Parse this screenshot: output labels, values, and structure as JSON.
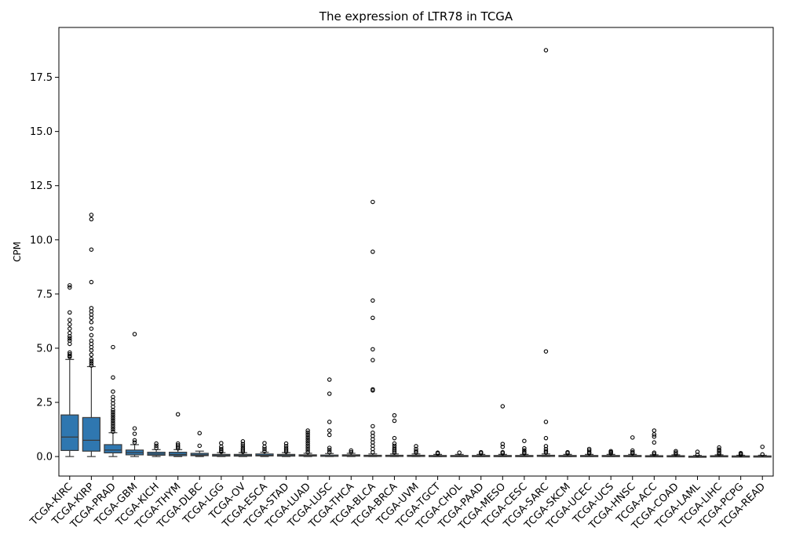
{
  "chart_data": {
    "type": "box",
    "title": "The expression of LTR78 in TCGA",
    "xlabel": "",
    "ylabel": "CPM",
    "ylim": [
      -0.9,
      19.8
    ],
    "yticks": [
      0.0,
      2.5,
      5.0,
      7.5,
      10.0,
      12.5,
      15.0,
      17.5
    ],
    "ytick_labels": [
      "0.0",
      "2.5",
      "5.0",
      "7.5",
      "10.0",
      "12.5",
      "15.0",
      "17.5"
    ],
    "grid": false,
    "legend": "none",
    "box_color": "#2f77b0",
    "categories": [
      "TCGA-KIRC",
      "TCGA-KIRP",
      "TCGA-PRAD",
      "TCGA-GBM",
      "TCGA-KICH",
      "TCGA-THYM",
      "TCGA-DLBC",
      "TCGA-LGG",
      "TCGA-OV",
      "TCGA-ESCA",
      "TCGA-STAD",
      "TCGA-LUAD",
      "TCGA-LUSC",
      "TCGA-THCA",
      "TCGA-BLCA",
      "TCGA-BRCA",
      "TCGA-UVM",
      "TCGA-TGCT",
      "TCGA-CHOL",
      "TCGA-PAAD",
      "TCGA-MESO",
      "TCGA-CESC",
      "TCGA-SARC",
      "TCGA-SKCM",
      "TCGA-UCEC",
      "TCGA-UCS",
      "TCGA-HNSC",
      "TCGA-ACC",
      "TCGA-COAD",
      "TCGA-LAML",
      "TCGA-LIHC",
      "TCGA-PCPG",
      "TCGA-READ"
    ],
    "boxes": [
      {
        "whisker_low": 0.0,
        "q1": 0.28,
        "median": 0.9,
        "q3": 1.92,
        "whisker_high": 4.48,
        "outliers": [
          4.6,
          4.65,
          4.72,
          4.8,
          5.2,
          5.35,
          5.45,
          5.55,
          5.7,
          5.9,
          6.1,
          6.3,
          6.65,
          7.8,
          7.9
        ]
      },
      {
        "whisker_low": 0.0,
        "q1": 0.25,
        "median": 0.75,
        "q3": 1.8,
        "whisker_high": 4.15,
        "outliers": [
          4.2,
          4.3,
          4.4,
          4.5,
          4.7,
          4.9,
          5.05,
          5.2,
          5.35,
          5.6,
          5.9,
          6.2,
          6.4,
          6.55,
          6.7,
          6.85,
          8.05,
          9.55,
          10.95,
          11.15
        ]
      },
      {
        "whisker_low": 0.0,
        "q1": 0.17,
        "median": 0.3,
        "q3": 0.55,
        "whisker_high": 1.1,
        "outliers": [
          1.15,
          1.25,
          1.35,
          1.45,
          1.55,
          1.65,
          1.75,
          1.85,
          1.95,
          2.05,
          2.15,
          2.3,
          2.45,
          2.6,
          2.75,
          3.0,
          3.65,
          5.05
        ]
      },
      {
        "whisker_low": 0.0,
        "q1": 0.08,
        "median": 0.18,
        "q3": 0.3,
        "whisker_high": 0.55,
        "outliers": [
          0.65,
          0.75,
          1.05,
          1.3,
          5.65
        ]
      },
      {
        "whisker_low": 0.0,
        "q1": 0.06,
        "median": 0.12,
        "q3": 0.2,
        "whisker_high": 0.32,
        "outliers": [
          0.4,
          0.5,
          0.6
        ]
      },
      {
        "whisker_low": 0.0,
        "q1": 0.04,
        "median": 0.1,
        "q3": 0.2,
        "whisker_high": 0.32,
        "outliers": [
          0.38,
          0.45,
          0.52,
          0.6,
          1.95
        ]
      },
      {
        "whisker_low": 0.0,
        "q1": 0.04,
        "median": 0.08,
        "q3": 0.15,
        "whisker_high": 0.25,
        "outliers": [
          0.5,
          1.08
        ]
      },
      {
        "whisker_low": 0.0,
        "q1": 0.02,
        "median": 0.05,
        "q3": 0.1,
        "whisker_high": 0.18,
        "outliers": [
          0.22,
          0.28,
          0.35,
          0.45,
          0.62
        ]
      },
      {
        "whisker_low": 0.0,
        "q1": 0.02,
        "median": 0.05,
        "q3": 0.1,
        "whisker_high": 0.18,
        "outliers": [
          0.22,
          0.3,
          0.38,
          0.48,
          0.58,
          0.7
        ]
      },
      {
        "whisker_low": 0.0,
        "q1": 0.03,
        "median": 0.06,
        "q3": 0.12,
        "whisker_high": 0.2,
        "outliers": [
          0.25,
          0.35,
          0.45,
          0.62
        ]
      },
      {
        "whisker_low": 0.0,
        "q1": 0.02,
        "median": 0.05,
        "q3": 0.1,
        "whisker_high": 0.18,
        "outliers": [
          0.22,
          0.3,
          0.38,
          0.48,
          0.6
        ]
      },
      {
        "whisker_low": 0.0,
        "q1": 0.02,
        "median": 0.04,
        "q3": 0.08,
        "whisker_high": 0.15,
        "outliers": [
          0.2,
          0.3,
          0.4,
          0.5,
          0.6,
          0.7,
          0.8,
          0.9,
          1.0,
          1.1,
          1.2
        ]
      },
      {
        "whisker_low": 0.0,
        "q1": 0.01,
        "median": 0.03,
        "q3": 0.07,
        "whisker_high": 0.14,
        "outliers": [
          0.2,
          0.3,
          0.4,
          1.0,
          1.2,
          1.6,
          2.9,
          3.55
        ]
      },
      {
        "whisker_low": 0.0,
        "q1": 0.02,
        "median": 0.04,
        "q3": 0.08,
        "whisker_high": 0.15,
        "outliers": [
          0.2,
          0.28
        ]
      },
      {
        "whisker_low": 0.0,
        "q1": 0.01,
        "median": 0.03,
        "q3": 0.06,
        "whisker_high": 0.12,
        "outliers": [
          0.2,
          0.35,
          0.5,
          0.65,
          0.8,
          0.95,
          1.1,
          1.4,
          3.05,
          3.1,
          4.45,
          4.95,
          6.4,
          7.2,
          9.45,
          11.75
        ]
      },
      {
        "whisker_low": 0.0,
        "q1": 0.01,
        "median": 0.03,
        "q3": 0.06,
        "whisker_high": 0.12,
        "outliers": [
          0.18,
          0.25,
          0.32,
          0.4,
          0.5,
          0.6,
          0.85,
          1.65,
          1.9
        ]
      },
      {
        "whisker_low": 0.0,
        "q1": 0.01,
        "median": 0.03,
        "q3": 0.06,
        "whisker_high": 0.12,
        "outliers": [
          0.18,
          0.25,
          0.35,
          0.48
        ]
      },
      {
        "whisker_low": 0.0,
        "q1": 0.01,
        "median": 0.02,
        "q3": 0.05,
        "whisker_high": 0.1,
        "outliers": [
          0.14,
          0.18
        ]
      },
      {
        "whisker_low": 0.0,
        "q1": 0.01,
        "median": 0.02,
        "q3": 0.05,
        "whisker_high": 0.1,
        "outliers": [
          0.18
        ]
      },
      {
        "whisker_low": 0.0,
        "q1": 0.01,
        "median": 0.02,
        "q3": 0.05,
        "whisker_high": 0.1,
        "outliers": [
          0.15,
          0.2
        ]
      },
      {
        "whisker_low": 0.0,
        "q1": 0.01,
        "median": 0.02,
        "q3": 0.05,
        "whisker_high": 0.1,
        "outliers": [
          0.15,
          0.2,
          0.45,
          0.58,
          2.32
        ]
      },
      {
        "whisker_low": 0.0,
        "q1": 0.01,
        "median": 0.02,
        "q3": 0.05,
        "whisker_high": 0.1,
        "outliers": [
          0.15,
          0.2,
          0.28,
          0.38,
          0.72
        ]
      },
      {
        "whisker_low": 0.0,
        "q1": 0.01,
        "median": 0.03,
        "q3": 0.06,
        "whisker_high": 0.12,
        "outliers": [
          0.18,
          0.25,
          0.35,
          0.48,
          0.85,
          1.6,
          4.85,
          18.75
        ]
      },
      {
        "whisker_low": 0.0,
        "q1": 0.01,
        "median": 0.02,
        "q3": 0.05,
        "whisker_high": 0.1,
        "outliers": [
          0.15,
          0.2
        ]
      },
      {
        "whisker_low": 0.0,
        "q1": 0.01,
        "median": 0.02,
        "q3": 0.05,
        "whisker_high": 0.1,
        "outliers": [
          0.15,
          0.2,
          0.28,
          0.35
        ]
      },
      {
        "whisker_low": 0.0,
        "q1": 0.01,
        "median": 0.02,
        "q3": 0.05,
        "whisker_high": 0.1,
        "outliers": [
          0.15,
          0.2,
          0.25
        ]
      },
      {
        "whisker_low": 0.0,
        "q1": 0.01,
        "median": 0.02,
        "q3": 0.05,
        "whisker_high": 0.1,
        "outliers": [
          0.15,
          0.2,
          0.28,
          0.88
        ]
      },
      {
        "whisker_low": 0.0,
        "q1": 0.01,
        "median": 0.02,
        "q3": 0.04,
        "whisker_high": 0.08,
        "outliers": [
          0.12,
          0.18,
          0.65,
          0.92,
          1.02,
          1.2
        ]
      },
      {
        "whisker_low": 0.0,
        "q1": 0.01,
        "median": 0.02,
        "q3": 0.04,
        "whisker_high": 0.08,
        "outliers": [
          0.12,
          0.18,
          0.25
        ]
      },
      {
        "whisker_low": 0.0,
        "q1": 0.0,
        "median": 0.01,
        "q3": 0.02,
        "whisker_high": 0.05,
        "outliers": [
          0.08,
          0.22
        ]
      },
      {
        "whisker_low": 0.0,
        "q1": 0.01,
        "median": 0.02,
        "q3": 0.04,
        "whisker_high": 0.08,
        "outliers": [
          0.12,
          0.18,
          0.25,
          0.32,
          0.42
        ]
      },
      {
        "whisker_low": 0.0,
        "q1": 0.0,
        "median": 0.01,
        "q3": 0.03,
        "whisker_high": 0.06,
        "outliers": [
          0.08,
          0.12,
          0.16
        ]
      },
      {
        "whisker_low": 0.0,
        "q1": 0.0,
        "median": 0.01,
        "q3": 0.03,
        "whisker_high": 0.06,
        "outliers": [
          0.1,
          0.45
        ]
      }
    ]
  }
}
